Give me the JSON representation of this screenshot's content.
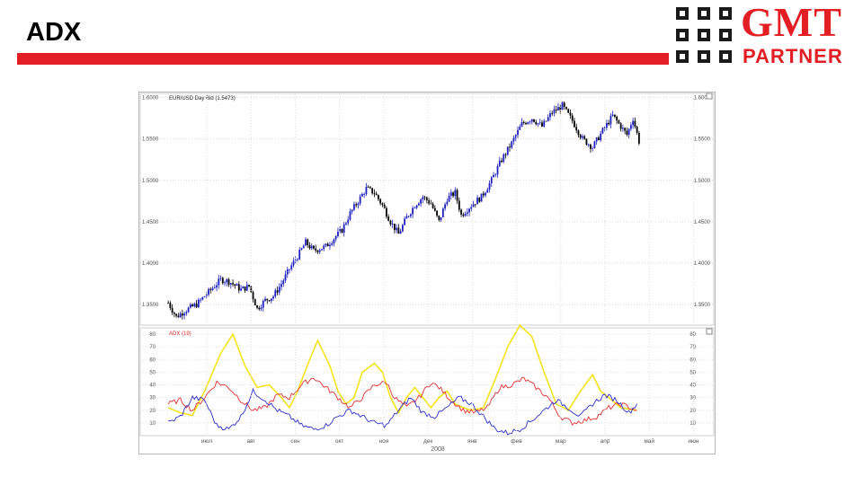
{
  "slide": {
    "title": "ADX",
    "logo_top": "GMT",
    "logo_bottom": "PARTNER",
    "accent_color": "#e31e24"
  },
  "chart_data": [
    {
      "type": "candlestick",
      "title": "EUR/USD Day Bid (1.5473)",
      "ylim": [
        1.325,
        1.605
      ],
      "yticks": [
        "1.6000",
        "1.5500",
        "1.5000",
        "1.4500",
        "1.4000",
        "1.3500"
      ],
      "grid": true,
      "up_color": "#1f1fbf",
      "down_color": "#000000",
      "close_path": [
        [
          0,
          1.352
        ],
        [
          4,
          1.335
        ],
        [
          8,
          1.342
        ],
        [
          14,
          1.35
        ],
        [
          20,
          1.365
        ],
        [
          26,
          1.38
        ],
        [
          30,
          1.378
        ],
        [
          36,
          1.368
        ],
        [
          40,
          1.372
        ],
        [
          44,
          1.345
        ],
        [
          48,
          1.355
        ],
        [
          52,
          1.36
        ],
        [
          56,
          1.375
        ],
        [
          60,
          1.393
        ],
        [
          64,
          1.408
        ],
        [
          68,
          1.425
        ],
        [
          72,
          1.415
        ],
        [
          78,
          1.42
        ],
        [
          82,
          1.43
        ],
        [
          86,
          1.44
        ],
        [
          90,
          1.46
        ],
        [
          94,
          1.475
        ],
        [
          98,
          1.49
        ],
        [
          102,
          1.485
        ],
        [
          106,
          1.47
        ],
        [
          110,
          1.45
        ],
        [
          114,
          1.435
        ],
        [
          118,
          1.455
        ],
        [
          122,
          1.47
        ],
        [
          126,
          1.48
        ],
        [
          130,
          1.472
        ],
        [
          134,
          1.45
        ],
        [
          138,
          1.478
        ],
        [
          142,
          1.485
        ],
        [
          145,
          1.458
        ],
        [
          150,
          1.47
        ],
        [
          155,
          1.48
        ],
        [
          160,
          1.5
        ],
        [
          165,
          1.525
        ],
        [
          170,
          1.545
        ],
        [
          175,
          1.568
        ],
        [
          180,
          1.575
        ],
        [
          185,
          1.565
        ],
        [
          190,
          1.582
        ],
        [
          195,
          1.59
        ],
        [
          200,
          1.572
        ],
        [
          205,
          1.55
        ],
        [
          210,
          1.54
        ],
        [
          215,
          1.56
        ],
        [
          220,
          1.578
        ],
        [
          224,
          1.565
        ],
        [
          227,
          1.555
        ],
        [
          230,
          1.575
        ],
        [
          233,
          1.547
        ]
      ]
    },
    {
      "type": "line",
      "title": "ADX (19)",
      "ylim": [
        0,
        85
      ],
      "yticks": [
        80,
        70,
        60,
        50,
        40,
        30,
        20,
        10
      ],
      "grid": true,
      "x_tick_labels": [
        "июл",
        "авг",
        "сен",
        "окт",
        "ноя",
        "дек",
        "янв",
        "фев",
        "мар",
        "апр",
        "май",
        "июн",
        "июл"
      ],
      "x_year_label": "2008",
      "series": [
        {
          "color": "#f5e31a",
          "points": [
            [
              0,
              22
            ],
            [
              6,
              18
            ],
            [
              12,
              16
            ],
            [
              18,
              35
            ],
            [
              26,
              65
            ],
            [
              32,
              80
            ],
            [
              38,
              55
            ],
            [
              44,
              38
            ],
            [
              50,
              40
            ],
            [
              56,
              30
            ],
            [
              60,
              22
            ],
            [
              64,
              35
            ],
            [
              70,
              60
            ],
            [
              74,
              75
            ],
            [
              80,
              55
            ],
            [
              84,
              35
            ],
            [
              88,
              25
            ],
            [
              92,
              30
            ],
            [
              96,
              50
            ],
            [
              102,
              57
            ],
            [
              106,
              50
            ],
            [
              110,
              30
            ],
            [
              114,
              18
            ],
            [
              118,
              30
            ],
            [
              122,
              38
            ],
            [
              126,
              30
            ],
            [
              130,
              22
            ],
            [
              134,
              30
            ],
            [
              138,
              35
            ],
            [
              142,
              25
            ],
            [
              146,
              22
            ],
            [
              150,
              20
            ],
            [
              156,
              22
            ],
            [
              162,
              45
            ],
            [
              168,
              70
            ],
            [
              174,
              87
            ],
            [
              180,
              78
            ],
            [
              186,
              50
            ],
            [
              192,
              25
            ],
            [
              198,
              20
            ],
            [
              204,
              35
            ],
            [
              210,
              48
            ],
            [
              214,
              35
            ],
            [
              218,
              30
            ],
            [
              224,
              22
            ],
            [
              232,
              20
            ]
          ]
        },
        {
          "color": "#e03030",
          "points": [
            [
              0,
              25
            ],
            [
              6,
              28
            ],
            [
              12,
              20
            ],
            [
              18,
              30
            ],
            [
              24,
              42
            ],
            [
              30,
              38
            ],
            [
              36,
              28
            ],
            [
              42,
              20
            ],
            [
              48,
              22
            ],
            [
              54,
              32
            ],
            [
              60,
              30
            ],
            [
              66,
              40
            ],
            [
              72,
              46
            ],
            [
              78,
              38
            ],
            [
              84,
              30
            ],
            [
              90,
              22
            ],
            [
              96,
              30
            ],
            [
              102,
              40
            ],
            [
              108,
              42
            ],
            [
              112,
              30
            ],
            [
              118,
              22
            ],
            [
              124,
              30
            ],
            [
              130,
              42
            ],
            [
              134,
              38
            ],
            [
              140,
              28
            ],
            [
              146,
              20
            ],
            [
              152,
              18
            ],
            [
              158,
              22
            ],
            [
              164,
              38
            ],
            [
              170,
              40
            ],
            [
              176,
              45
            ],
            [
              182,
              38
            ],
            [
              188,
              30
            ],
            [
              194,
              15
            ],
            [
              200,
              10
            ],
            [
              206,
              12
            ],
            [
              212,
              15
            ],
            [
              218,
              22
            ],
            [
              224,
              25
            ],
            [
              232,
              20
            ]
          ]
        },
        {
          "color": "#2c2cc8",
          "points": [
            [
              0,
              10
            ],
            [
              6,
              15
            ],
            [
              12,
              30
            ],
            [
              18,
              28
            ],
            [
              24,
              8
            ],
            [
              30,
              5
            ],
            [
              36,
              15
            ],
            [
              42,
              35
            ],
            [
              48,
              28
            ],
            [
              54,
              20
            ],
            [
              60,
              15
            ],
            [
              66,
              8
            ],
            [
              72,
              5
            ],
            [
              78,
              8
            ],
            [
              84,
              15
            ],
            [
              90,
              20
            ],
            [
              96,
              15
            ],
            [
              102,
              10
            ],
            [
              108,
              8
            ],
            [
              114,
              20
            ],
            [
              120,
              30
            ],
            [
              126,
              18
            ],
            [
              132,
              15
            ],
            [
              138,
              22
            ],
            [
              144,
              30
            ],
            [
              150,
              25
            ],
            [
              156,
              15
            ],
            [
              162,
              5
            ],
            [
              168,
              2
            ],
            [
              174,
              5
            ],
            [
              180,
              12
            ],
            [
              186,
              20
            ],
            [
              192,
              28
            ],
            [
              198,
              22
            ],
            [
              204,
              15
            ],
            [
              210,
              25
            ],
            [
              216,
              32
            ],
            [
              222,
              28
            ],
            [
              228,
              18
            ],
            [
              232,
              25
            ]
          ]
        }
      ]
    }
  ]
}
